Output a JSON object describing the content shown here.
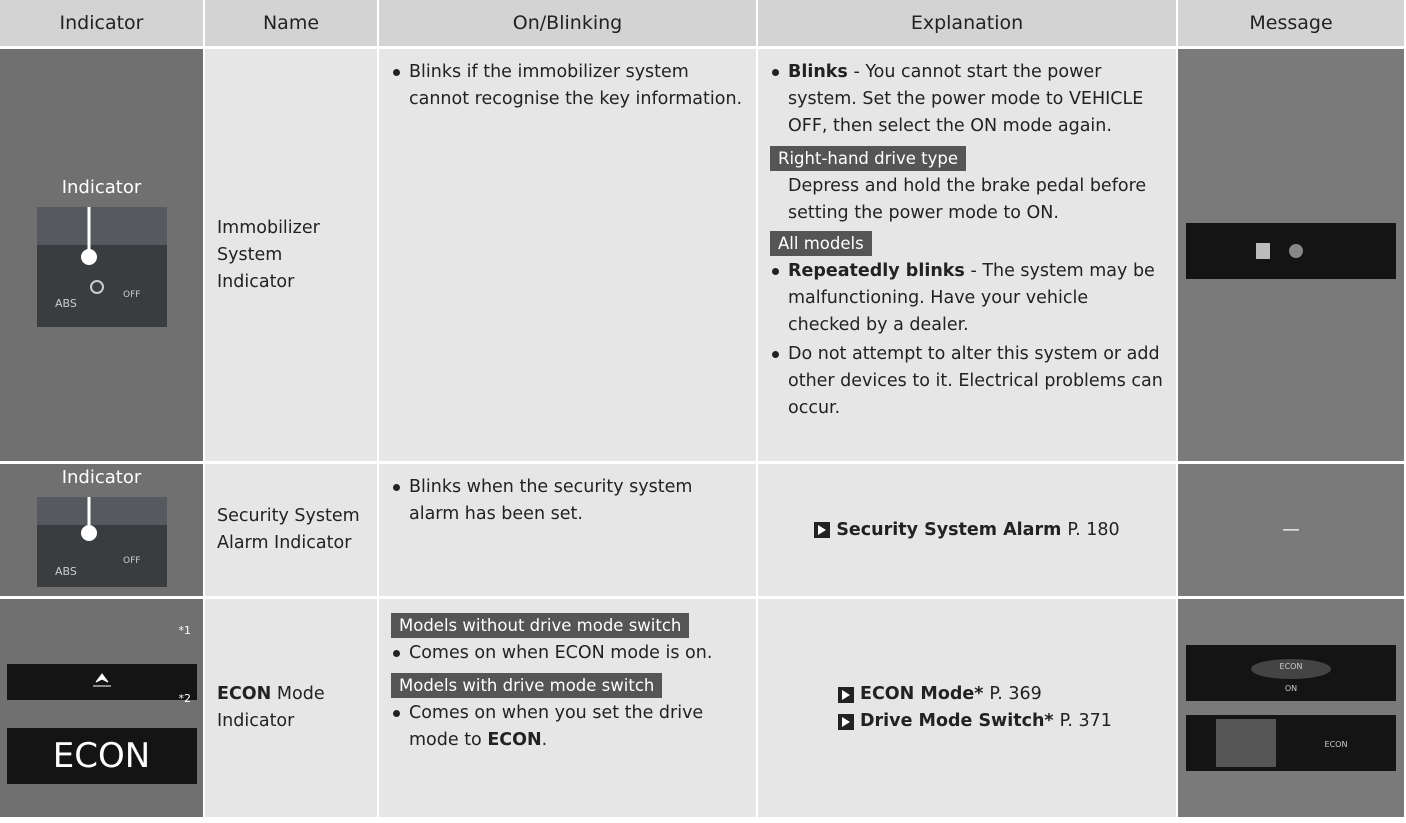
{
  "table": {
    "header": [
      "Indicator",
      "Name",
      "On/Blinking",
      "Explanation",
      "Message"
    ],
    "rows": [
      {
        "indicator": {
          "label": "Indicator",
          "icon_texts": [
            "ABS",
            "OFF"
          ]
        },
        "name": "Immobilizer System Indicator",
        "on_blinking": [
          "Blinks if the immobilizer system cannot recognise the key information."
        ],
        "explanation": [
          {
            "bold": "Blinks",
            "text": "- You cannot start the power system. Set the power mode to VEHICLE OFF, then select the ON mode again."
          },
          {
            "tag": "Right-hand drive type"
          },
          {
            "text": "Depress and hold the brake pedal before setting the power mode to ON."
          },
          {
            "tag": "All models"
          },
          {
            "bold": "Repeatedly blinks",
            "text": "- The system may be malfunctioning. Have your vehicle checked by a dealer."
          },
          {
            "text": "Do not attempt to alter this system or add other devices to it. Electrical problems can occur."
          }
        ]
      },
      {
        "indicator": {
          "label": "Indicator",
          "icon_texts": [
            "ABS",
            "OFF"
          ]
        },
        "name": "Security System Alarm Indicator",
        "on_blinking": [
          "Blinks when the security system alarm has been set."
        ],
        "explanation": [
          {
            "title": "Security System Alarm",
            "page": "P. 180"
          }
        ],
        "message": "—"
      },
      {
        "indicator": {
          "notes": [
            "*1",
            "*2"
          ],
          "icon_text": "ECON"
        },
        "name": {
          "bold": "ECON",
          "text": "Mode Indicator"
        },
        "on_blinking": [
          {
            "tag": "Models without drive mode switch"
          },
          {
            "text": "Comes on when ECON mode is on."
          },
          {
            "tag": "Models with drive mode switch"
          },
          {
            "text": "Comes on when you set the drive mode to",
            "bold": "ECON",
            "end": "."
          }
        ],
        "explanation": [
          {
            "title": "ECON Mode",
            "mark": "*",
            "page": "P. 369"
          },
          {
            "title": "Drive Mode Switch",
            "mark": "*",
            "page": "P. 371"
          }
        ],
        "message": [
          "ECON",
          "ON",
          "ECON"
        ]
      }
    ]
  }
}
